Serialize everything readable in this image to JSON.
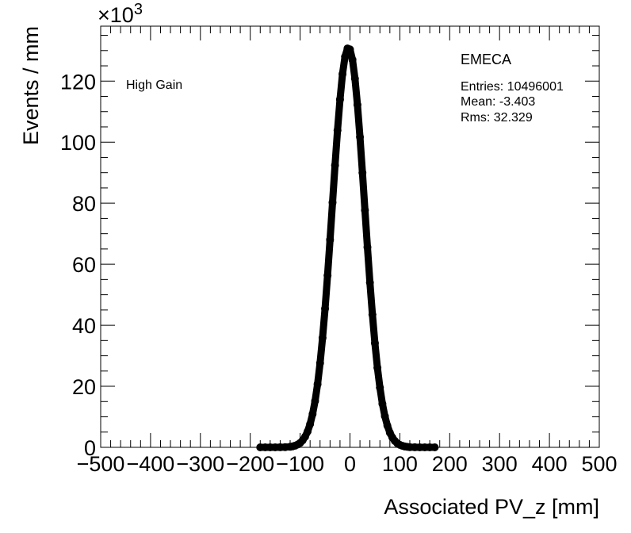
{
  "chart_data": {
    "type": "scatter",
    "title": "",
    "xlabel": "Associated PV_z [mm]",
    "ylabel": "Events / mm",
    "y_multiplier": "×10",
    "y_multiplier_exp": "3",
    "xlim": [
      -500,
      500
    ],
    "ylim": [
      0,
      138
    ],
    "x_ticks": [
      -500,
      -400,
      -300,
      -200,
      -100,
      0,
      100,
      200,
      300,
      400,
      500
    ],
    "x_tick_labels": [
      "−500",
      "−400",
      "−300",
      "−200",
      "−100",
      "0",
      "100",
      "200",
      "300",
      "400",
      "500"
    ],
    "y_ticks": [
      0,
      20,
      40,
      60,
      80,
      100,
      120
    ],
    "y_tick_labels": [
      "0",
      "20",
      "40",
      "60",
      "80",
      "100",
      "120"
    ],
    "grid": false,
    "legend": "none",
    "annotations": {
      "label": "High Gain",
      "stats_title": "EMECA",
      "entries": "Entries: 10496001",
      "mean": "Mean: -3.403",
      "rms": "Rms: 32.329"
    },
    "series": [
      {
        "name": "EMECA",
        "color": "#000000",
        "x": [
          -180,
          -170,
          -160,
          -150,
          -140,
          -130,
          -120,
          -115,
          -110,
          -105,
          -100,
          -95,
          -90,
          -85,
          -80,
          -75,
          -70,
          -65,
          -60,
          -55,
          -50,
          -45,
          -40,
          -35,
          -30,
          -25,
          -20,
          -15,
          -10,
          -5,
          0,
          5,
          10,
          15,
          20,
          25,
          30,
          35,
          40,
          45,
          50,
          55,
          60,
          65,
          70,
          75,
          80,
          85,
          90,
          95,
          100,
          105,
          110,
          115,
          120,
          130,
          140,
          150,
          160,
          170
        ],
        "y": [
          0,
          0,
          0,
          0,
          0.02,
          0.06,
          0.18,
          0.32,
          0.54,
          0.9,
          1.44,
          2.27,
          3.48,
          5.2,
          7.6,
          10.9,
          15.2,
          20.7,
          27.6,
          35.9,
          45.4,
          56.3,
          68.0,
          80.2,
          92.4,
          103.9,
          114.0,
          122.3,
          128.0,
          130.7,
          130.4,
          127.0,
          120.8,
          112.2,
          101.7,
          90.0,
          77.7,
          65.6,
          54.0,
          43.5,
          34.1,
          26.1,
          19.6,
          14.3,
          10.2,
          7.1,
          4.8,
          3.2,
          2.1,
          1.3,
          0.81,
          0.5,
          0.29,
          0.16,
          0.07,
          0.02,
          0,
          0,
          0,
          0
        ]
      }
    ]
  }
}
